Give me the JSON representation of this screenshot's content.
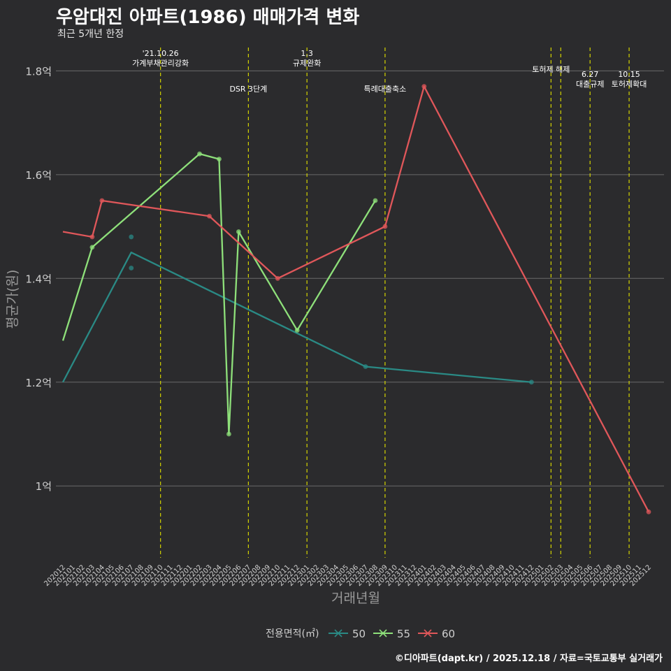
{
  "title": "우암대진 아파트(1986) 매매가격 변화",
  "subtitle": "최근 5개년 한정",
  "caption": "©디아파트(dapt.kr) / 2025.12.18 / 자료=국토교통부 실거래가",
  "colors": {
    "background": "#2b2b2d",
    "grid": "#6a6a6a",
    "vline": "#d4d400",
    "s50": "#2a8a85",
    "s55": "#8ee07a",
    "s60": "#e0575a",
    "text": "#cfcfcf"
  },
  "chart_data": {
    "type": "line",
    "title": "우암대진 아파트(1986) 매매가격 변화",
    "subtitle": "최근 5개년 한정",
    "xlabel": "거래년월",
    "ylabel": "평균가(원)",
    "ylim": [
      0.875,
      1.845
    ],
    "y_ticks": [
      {
        "v": 1.0,
        "label": "1억"
      },
      {
        "v": 1.2,
        "label": "1.2억"
      },
      {
        "v": 1.4,
        "label": "1.4억"
      },
      {
        "v": 1.6,
        "label": "1.6억"
      },
      {
        "v": 1.8,
        "label": "1.8억"
      }
    ],
    "categories": [
      "202012",
      "202101",
      "202102",
      "202103",
      "202104",
      "202105",
      "202106",
      "202107",
      "202108",
      "202109",
      "202110",
      "202111",
      "202112",
      "202201",
      "202202",
      "202203",
      "202204",
      "202205",
      "202206",
      "202207",
      "202208",
      "202209",
      "202210",
      "202211",
      "202212",
      "202301",
      "202302",
      "202303",
      "202304",
      "202305",
      "202306",
      "202307",
      "202308",
      "202309",
      "202310",
      "202311",
      "202312",
      "202401",
      "202402",
      "202403",
      "202404",
      "202405",
      "202406",
      "202407",
      "202408",
      "202409",
      "202410",
      "202411",
      "202412",
      "202501",
      "202502",
      "202503",
      "202504",
      "202505",
      "202506",
      "202507",
      "202508",
      "202509",
      "202510",
      "202511",
      "202512"
    ],
    "legend_title": "전용면적(㎡)",
    "legend_position": "bottom",
    "series": [
      {
        "name": "50",
        "color": "#2a8a85",
        "line": [
          {
            "x": "202012",
            "y": 1.2
          },
          {
            "x": "202107",
            "y": 1.45
          },
          {
            "x": "202307",
            "y": 1.23
          },
          {
            "x": "202412",
            "y": 1.2
          }
        ],
        "points": [
          {
            "x": "202107",
            "y": 1.48
          },
          {
            "x": "202107",
            "y": 1.42
          },
          {
            "x": "202307",
            "y": 1.23
          },
          {
            "x": "202412",
            "y": 1.2
          }
        ]
      },
      {
        "name": "55",
        "color": "#8ee07a",
        "line": [
          {
            "x": "202012",
            "y": 1.28
          },
          {
            "x": "202103",
            "y": 1.46
          },
          {
            "x": "202202",
            "y": 1.64
          },
          {
            "x": "202204",
            "y": 1.63
          },
          {
            "x": "202205",
            "y": 1.1
          },
          {
            "x": "202206",
            "y": 1.49
          },
          {
            "x": "202212",
            "y": 1.3
          },
          {
            "x": "202308",
            "y": 1.55
          }
        ],
        "points": [
          {
            "x": "202103",
            "y": 1.46
          },
          {
            "x": "202202",
            "y": 1.64
          },
          {
            "x": "202204",
            "y": 1.63
          },
          {
            "x": "202205",
            "y": 1.1
          },
          {
            "x": "202206",
            "y": 1.49
          },
          {
            "x": "202212",
            "y": 1.3
          },
          {
            "x": "202308",
            "y": 1.55
          }
        ]
      },
      {
        "name": "60",
        "color": "#e0575a",
        "line": [
          {
            "x": "202012",
            "y": 1.49
          },
          {
            "x": "202103",
            "y": 1.48
          },
          {
            "x": "202104",
            "y": 1.55
          },
          {
            "x": "202203",
            "y": 1.52
          },
          {
            "x": "202210",
            "y": 1.4
          },
          {
            "x": "202309",
            "y": 1.5
          },
          {
            "x": "202401",
            "y": 1.77
          },
          {
            "x": "202512",
            "y": 0.95
          }
        ],
        "points": [
          {
            "x": "202103",
            "y": 1.48
          },
          {
            "x": "202104",
            "y": 1.55
          },
          {
            "x": "202203",
            "y": 1.52
          },
          {
            "x": "202210",
            "y": 1.4
          },
          {
            "x": "202309",
            "y": 1.5
          },
          {
            "x": "202401",
            "y": 1.77
          },
          {
            "x": "202512",
            "y": 0.95
          }
        ]
      }
    ],
    "events": [
      {
        "x": "202110",
        "lines": [
          "'21.10.26",
          "가계부채관리강화"
        ],
        "level": "high"
      },
      {
        "x": "202207",
        "lines": [
          "DSR 3단계"
        ],
        "level": "low"
      },
      {
        "x": "202301",
        "lines": [
          "1.3",
          "규제완화"
        ],
        "level": "high"
      },
      {
        "x": "202309",
        "lines": [
          "특례대출축소"
        ],
        "level": "low"
      },
      {
        "x": "202502",
        "lines": [
          "토허제 해제"
        ],
        "level": "mid"
      },
      {
        "x": "202503",
        "lines": [],
        "level": "none"
      },
      {
        "x": "202506",
        "lines": [
          "6.27",
          "대출규제"
        ],
        "level": "lower"
      },
      {
        "x": "202510",
        "lines": [
          "10.15",
          "토허제확대"
        ],
        "level": "lower"
      }
    ]
  }
}
